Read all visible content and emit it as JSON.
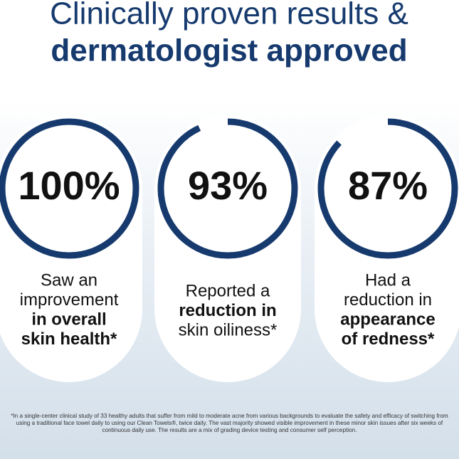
{
  "header": {
    "line1": "Clinically proven results &",
    "line2": "dermatologist approved"
  },
  "stats": [
    {
      "value": 100,
      "value_label": "100%",
      "lines": [
        {
          "text": "Saw an",
          "bold": false
        },
        {
          "text": "improvement",
          "bold": false
        },
        {
          "text": "in overall",
          "bold": true
        },
        {
          "text": "skin health*",
          "bold": true
        }
      ]
    },
    {
      "value": 93,
      "value_label": "93%",
      "lines": [
        {
          "text": "Reported a",
          "bold": false
        },
        {
          "text": "reduction in",
          "bold": true
        },
        {
          "text": "skin oiliness*",
          "bold": false
        }
      ]
    },
    {
      "value": 87,
      "value_label": "87%",
      "lines": [
        {
          "text": "Had a",
          "bold": false
        },
        {
          "text": "reduction in",
          "bold": false
        },
        {
          "text": "appearance",
          "bold": true
        },
        {
          "text": "of redness*",
          "bold": true
        }
      ]
    }
  ],
  "ring_color": "#163a6e",
  "footnote": "*In a single-center clinical study of 33 healthy adults that suffer from mild to moderate acne from various backgrounds to evaluate the safety and efficacy of switching from using a traditional face towel daily to using our Clean Towels®, twice daily. The vast majority showed visible improvement in these minor skin issues after six weeks of continuous daily use. The results are a mix of grading device testing and consumer self perception."
}
